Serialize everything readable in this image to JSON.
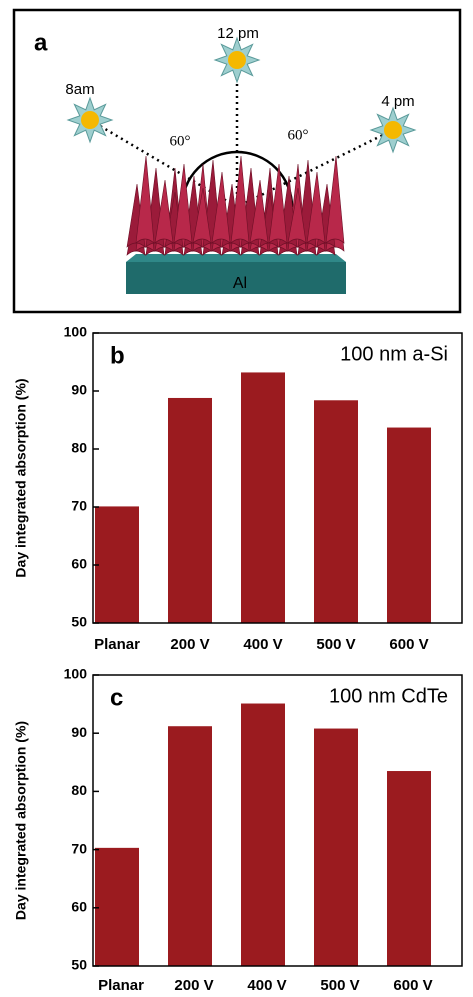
{
  "diagram": {
    "panel": "a",
    "sun_labels": [
      "8am",
      "12 pm",
      "4 pm"
    ],
    "angle_labels": [
      "60°",
      "60°"
    ],
    "substrate": "Al"
  },
  "chart_data": [
    {
      "type": "bar",
      "panel": "b",
      "title": "100 nm a-Si",
      "y_label": "Day integrated absorption (%)",
      "categories": [
        "Planar",
        "200 V",
        "400 V",
        "500 V",
        "600 V"
      ],
      "values": [
        70.1,
        88.8,
        93.2,
        88.4,
        83.7
      ],
      "color": "#9b1b1f",
      "ylim": [
        50,
        100
      ],
      "yticks": [
        50,
        60,
        70,
        80,
        90,
        100
      ]
    },
    {
      "type": "bar",
      "panel": "c",
      "title": "100 nm CdTe",
      "y_label": "Day integrated absorption (%)",
      "categories": [
        "Planar",
        "200 V",
        "400 V",
        "500 V",
        "600 V"
      ],
      "values": [
        70.3,
        91.2,
        95.1,
        90.8,
        83.5
      ],
      "color": "#9b1b1f",
      "ylim": [
        50,
        100
      ],
      "yticks": [
        50,
        60,
        70,
        80,
        90,
        100
      ]
    }
  ]
}
